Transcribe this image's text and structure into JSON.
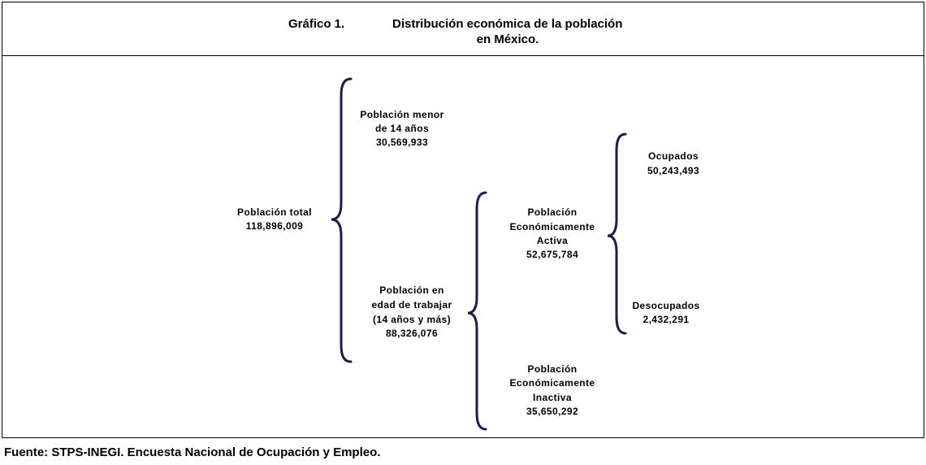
{
  "header": {
    "label": "Gráfico 1.",
    "title": [
      "Distribución económica de la población",
      "en México."
    ]
  },
  "nodes": [
    {
      "lines": [
        "Población total"
      ],
      "value": "118,896,009"
    },
    {
      "lines": [
        "Población menor",
        "de 14 años"
      ],
      "value": "30,569,933"
    },
    {
      "lines": [
        "Población en",
        "edad de trabajar",
        "(14 años y más)"
      ],
      "value": "88,326,076"
    },
    {
      "lines": [
        "Población",
        "Económicamente",
        "Activa"
      ],
      "value": "52,675,784"
    },
    {
      "lines": [
        "Población",
        "Económicamente",
        "Inactiva"
      ],
      "value": "35,650,292"
    },
    {
      "lines": [
        "Ocupados"
      ],
      "value": "50,243,493"
    },
    {
      "lines": [
        "Desocupados"
      ],
      "value": "2,432,291"
    }
  ],
  "footer": "Fuente: STPS-INEGI. Encuesta Nacional de Ocupación y Empleo."
}
